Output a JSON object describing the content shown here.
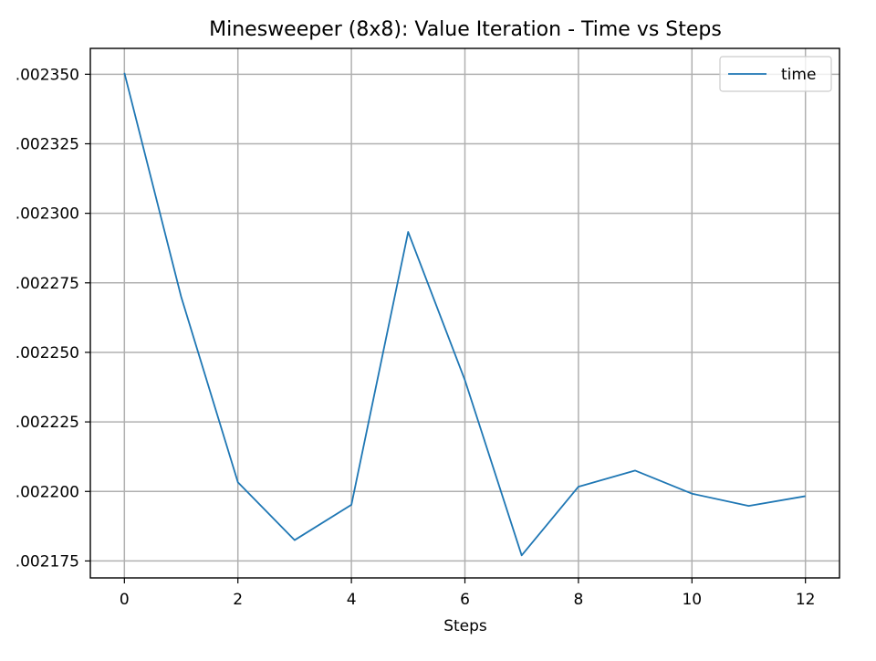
{
  "chart_data": {
    "type": "line",
    "title": "Minesweeper (8x8): Value Iteration - Time vs Steps",
    "xlabel": "Steps",
    "ylabel": "",
    "x": [
      0,
      1,
      2,
      3,
      4,
      5,
      6,
      7,
      8,
      9,
      10,
      11,
      12
    ],
    "series": [
      {
        "name": "time",
        "color": "#1f77b4",
        "values": [
          0.0023505,
          0.00227,
          0.0022033,
          0.0021825,
          0.0021952,
          0.0022933,
          0.00224,
          0.002177,
          0.0022017,
          0.0022075,
          0.0021992,
          0.0021948,
          0.0021983
        ]
      }
    ],
    "xlim": [
      -0.6,
      12.6
    ],
    "ylim": [
      0.0021689,
      0.0023593
    ],
    "xticks": [
      0,
      2,
      4,
      6,
      8,
      10,
      12
    ],
    "xtick_labels": [
      "0",
      "2",
      "4",
      "6",
      "8",
      "10",
      "12"
    ],
    "yticks": [
      0.002175,
      0.0022,
      0.002225,
      0.00225,
      0.002275,
      0.0023,
      0.002325,
      0.00235
    ],
    "ytick_labels": [
      ".002175",
      ".002200",
      ".002225",
      ".002250",
      ".002275",
      ".002300",
      ".002325",
      ".002350"
    ],
    "grid": true,
    "legend_position": "top-right"
  }
}
